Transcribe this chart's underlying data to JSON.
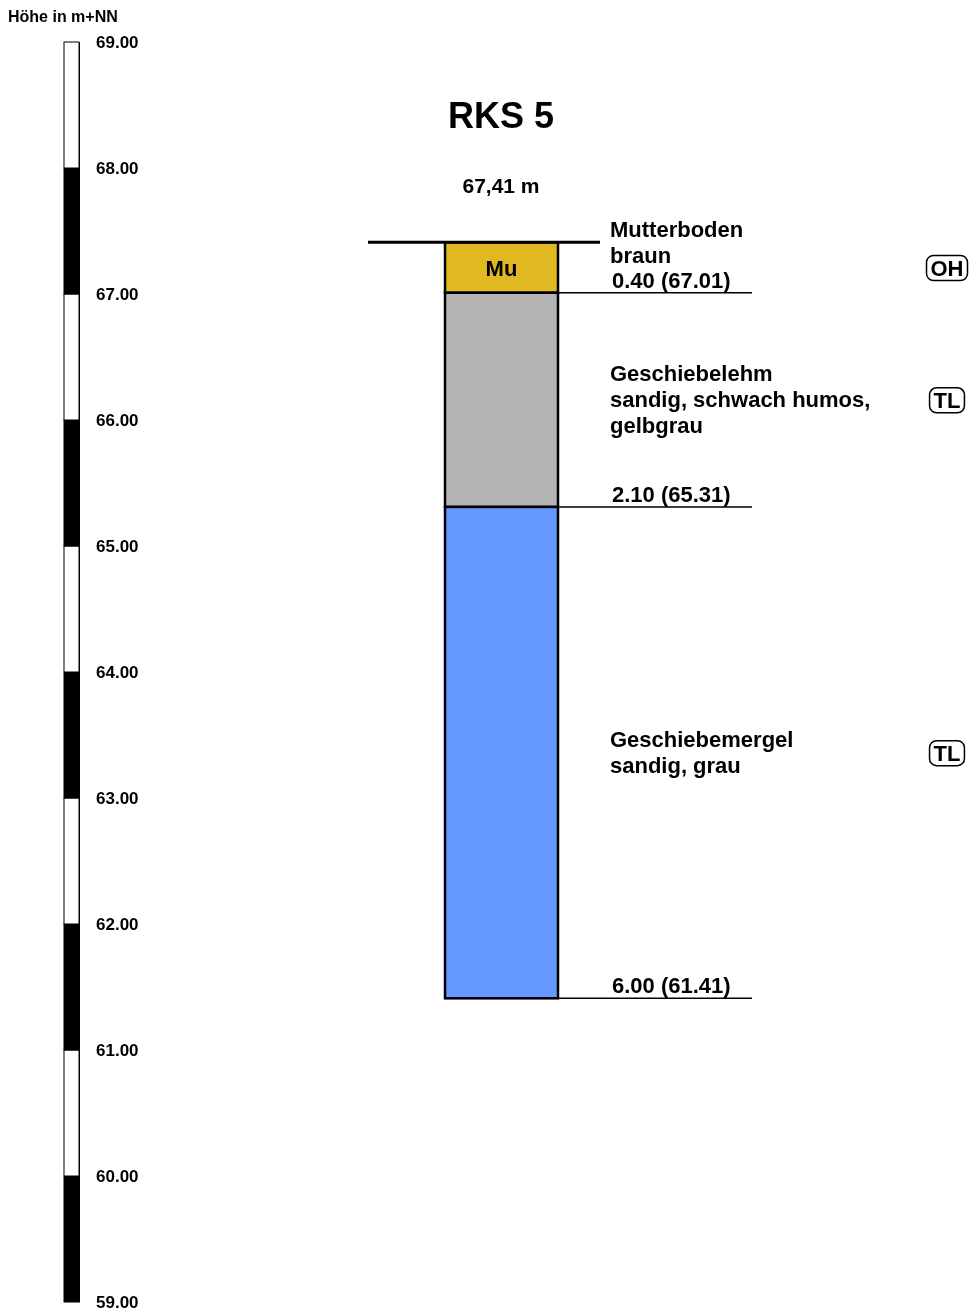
{
  "chart_data": {
    "type": "bar",
    "title": "RKS 5",
    "subtitle": "67,41 m",
    "ylabel": "Höhe in m+NN",
    "categories": [
      null
    ],
    "series": [
      {
        "name": "Mutterboden\nbraun",
        "color": "#e0b820",
        "values": [
          -0.4
        ],
        "base": [
          67.41
        ]
      },
      {
        "name": "Geschiebelehm\nsandig, schwach humos,\ngelbgrau",
        "color": "#b4b4b4",
        "values": [
          -1.7
        ],
        "base": [
          67.01
        ]
      },
      {
        "name": "Geschiebemergel\nsandig, grau",
        "color": "#6699ff",
        "values": [
          -3.9
        ],
        "base": [
          65.31
        ]
      }
    ],
    "ylim": [
      59,
      69
    ],
    "yticks": [
      {
        "value": 69,
        "label": "69.00"
      },
      {
        "value": 68,
        "label": "68.00"
      },
      {
        "value": 67,
        "label": "67.00"
      },
      {
        "value": 66,
        "label": "66.00"
      },
      {
        "value": 65,
        "label": "65.00"
      },
      {
        "value": 64,
        "label": "64.00"
      },
      {
        "value": 63,
        "label": "63.00"
      },
      {
        "value": 62,
        "label": "62.00"
      },
      {
        "value": 61,
        "label": "61.00"
      },
      {
        "value": 60,
        "label": "60.00"
      },
      {
        "value": 59,
        "label": "59.00"
      }
    ],
    "ref_lines": [
      {
        "axis": "y",
        "value": 67.41,
        "label": null
      },
      {
        "axis": "y",
        "value": 67.01,
        "label": "0.40 (67.01)"
      },
      {
        "axis": "y",
        "value": 65.31,
        "label": "2.10 (65.31)"
      },
      {
        "axis": "y",
        "value": 61.41,
        "label": "6.00 (61.41)"
      }
    ],
    "annotations": [
      "Mu",
      "OH",
      "TL",
      "TL"
    ]
  }
}
